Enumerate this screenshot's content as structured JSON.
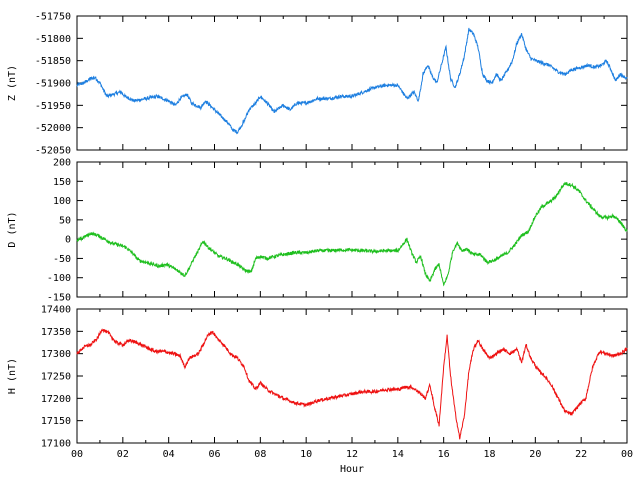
{
  "chart_data": [
    {
      "type": "line",
      "ylabel": "Z (nT)",
      "ylim": [
        -52050,
        -51750
      ],
      "yticks": [
        -51750,
        -51800,
        -51850,
        -51900,
        -51950,
        -52000,
        -52050
      ],
      "color": "#1e7fe0",
      "x": [
        0,
        0.3,
        0.6,
        0.8,
        1.0,
        1.3,
        1.6,
        1.9,
        2.1,
        2.5,
        3.0,
        3.5,
        4.0,
        4.3,
        4.5,
        4.8,
        5.0,
        5.4,
        5.6,
        6.0,
        6.3,
        6.6,
        6.8,
        7.0,
        7.3,
        7.5,
        7.8,
        8.0,
        8.3,
        8.6,
        9.0,
        9.3,
        9.6,
        10.0,
        10.5,
        11.0,
        11.5,
        12.0,
        12.5,
        13.0,
        13.5,
        14.0,
        14.2,
        14.4,
        14.7,
        14.9,
        15.1,
        15.3,
        15.5,
        15.7,
        15.9,
        16.1,
        16.3,
        16.5,
        16.7,
        16.9,
        17.1,
        17.3,
        17.5,
        17.7,
        17.9,
        18.1,
        18.3,
        18.5,
        18.8,
        19.0,
        19.2,
        19.4,
        19.6,
        19.8,
        20.0,
        20.3,
        20.6,
        21.0,
        21.3,
        21.6,
        22.0,
        22.3,
        22.6,
        22.9,
        23.1,
        23.3,
        23.5,
        23.7,
        24.0
      ],
      "y": [
        -51905,
        -51900,
        -51890,
        -51888,
        -51900,
        -51930,
        -51925,
        -51920,
        -51930,
        -51940,
        -51935,
        -51930,
        -51940,
        -51950,
        -51935,
        -51925,
        -51945,
        -51955,
        -51940,
        -51960,
        -51975,
        -51990,
        -52005,
        -52010,
        -51985,
        -51960,
        -51945,
        -51930,
        -51945,
        -51965,
        -51950,
        -51960,
        -51945,
        -51945,
        -51935,
        -51935,
        -51930,
        -51930,
        -51920,
        -51910,
        -51905,
        -51905,
        -51920,
        -51935,
        -51920,
        -51940,
        -51880,
        -51860,
        -51885,
        -51900,
        -51860,
        -51820,
        -51890,
        -51910,
        -51880,
        -51840,
        -51780,
        -51790,
        -51820,
        -51880,
        -51895,
        -51900,
        -51880,
        -51895,
        -51870,
        -51850,
        -51810,
        -51790,
        -51825,
        -51845,
        -51850,
        -51855,
        -51860,
        -51875,
        -51880,
        -51870,
        -51865,
        -51860,
        -51865,
        -51860,
        -51850,
        -51870,
        -51895,
        -51880,
        -51890
      ]
    },
    {
      "type": "line",
      "ylabel": "D (nT)",
      "ylim": [
        -150,
        200
      ],
      "yticks": [
        200,
        150,
        100,
        50,
        0,
        -50,
        -100,
        -150
      ],
      "color": "#1fbf1f",
      "x": [
        0,
        0.3,
        0.6,
        0.9,
        1.2,
        1.5,
        1.8,
        2.1,
        2.4,
        2.7,
        3.0,
        3.3,
        3.6,
        3.9,
        4.2,
        4.5,
        4.7,
        4.9,
        5.1,
        5.3,
        5.5,
        5.7,
        5.9,
        6.2,
        6.5,
        6.8,
        7.0,
        7.3,
        7.6,
        7.8,
        8.0,
        8.3,
        8.6,
        9.0,
        9.5,
        10.0,
        10.5,
        11.0,
        11.5,
        12.0,
        12.5,
        13.0,
        13.5,
        14.0,
        14.2,
        14.4,
        14.6,
        14.8,
        15.0,
        15.2,
        15.4,
        15.6,
        15.8,
        16.0,
        16.2,
        16.4,
        16.6,
        16.8,
        17.0,
        17.3,
        17.6,
        17.9,
        18.2,
        18.5,
        18.8,
        19.1,
        19.4,
        19.7,
        20.0,
        20.3,
        20.6,
        20.9,
        21.1,
        21.3,
        21.6,
        21.9,
        22.2,
        22.5,
        22.8,
        23.1,
        23.4,
        23.7,
        24.0
      ],
      "y": [
        -5,
        5,
        15,
        10,
        0,
        -10,
        -15,
        -20,
        -35,
        -55,
        -60,
        -65,
        -70,
        -65,
        -75,
        -85,
        -95,
        -75,
        -50,
        -30,
        -5,
        -20,
        -30,
        -45,
        -50,
        -60,
        -65,
        -80,
        -85,
        -50,
        -45,
        -50,
        -45,
        -40,
        -35,
        -35,
        -30,
        -30,
        -28,
        -28,
        -30,
        -32,
        -30,
        -30,
        -15,
        0,
        -35,
        -60,
        -45,
        -90,
        -110,
        -80,
        -65,
        -120,
        -90,
        -30,
        -10,
        -30,
        -25,
        -40,
        -40,
        -60,
        -55,
        -45,
        -35,
        -15,
        10,
        20,
        60,
        85,
        95,
        110,
        130,
        145,
        140,
        125,
        100,
        80,
        60,
        55,
        60,
        45,
        20
      ]
    },
    {
      "type": "line",
      "ylabel": "H (nT)",
      "ylim": [
        17100,
        17400
      ],
      "yticks": [
        17400,
        17350,
        17300,
        17250,
        17200,
        17150,
        17100
      ],
      "color": "#ee1111",
      "xlabel": "Hour",
      "xticks": [
        "00",
        "02",
        "04",
        "06",
        "08",
        "10",
        "12",
        "14",
        "16",
        "18",
        "20",
        "22",
        "00"
      ],
      "x": [
        0,
        0.3,
        0.6,
        0.9,
        1.1,
        1.4,
        1.7,
        2.0,
        2.3,
        2.6,
        3.0,
        3.4,
        3.8,
        4.2,
        4.5,
        4.7,
        4.9,
        5.1,
        5.3,
        5.5,
        5.7,
        5.9,
        6.1,
        6.4,
        6.7,
        7.0,
        7.3,
        7.5,
        7.8,
        8.0,
        8.3,
        8.6,
        9.0,
        9.5,
        10.0,
        10.5,
        11.0,
        11.5,
        12.0,
        12.5,
        13.0,
        13.5,
        14.0,
        14.3,
        14.6,
        14.9,
        15.2,
        15.4,
        15.6,
        15.8,
        16.0,
        16.15,
        16.3,
        16.5,
        16.7,
        16.9,
        17.1,
        17.3,
        17.5,
        17.7,
        18.0,
        18.3,
        18.6,
        18.9,
        19.2,
        19.4,
        19.6,
        19.8,
        20.1,
        20.4,
        20.7,
        21.0,
        21.3,
        21.6,
        21.9,
        22.2,
        22.5,
        22.8,
        23.1,
        23.4,
        23.7,
        24.0
      ],
      "y": [
        17300,
        17315,
        17320,
        17335,
        17355,
        17345,
        17325,
        17320,
        17330,
        17325,
        17315,
        17305,
        17305,
        17300,
        17295,
        17270,
        17290,
        17295,
        17300,
        17320,
        17340,
        17350,
        17335,
        17320,
        17300,
        17290,
        17270,
        17240,
        17220,
        17235,
        17220,
        17210,
        17200,
        17190,
        17185,
        17195,
        17200,
        17205,
        17210,
        17215,
        17215,
        17220,
        17220,
        17225,
        17225,
        17215,
        17200,
        17230,
        17180,
        17140,
        17270,
        17340,
        17250,
        17170,
        17110,
        17160,
        17260,
        17310,
        17330,
        17310,
        17290,
        17300,
        17310,
        17300,
        17310,
        17280,
        17320,
        17290,
        17265,
        17250,
        17230,
        17200,
        17170,
        17165,
        17185,
        17200,
        17270,
        17305,
        17300,
        17295,
        17300,
        17310
      ]
    }
  ]
}
